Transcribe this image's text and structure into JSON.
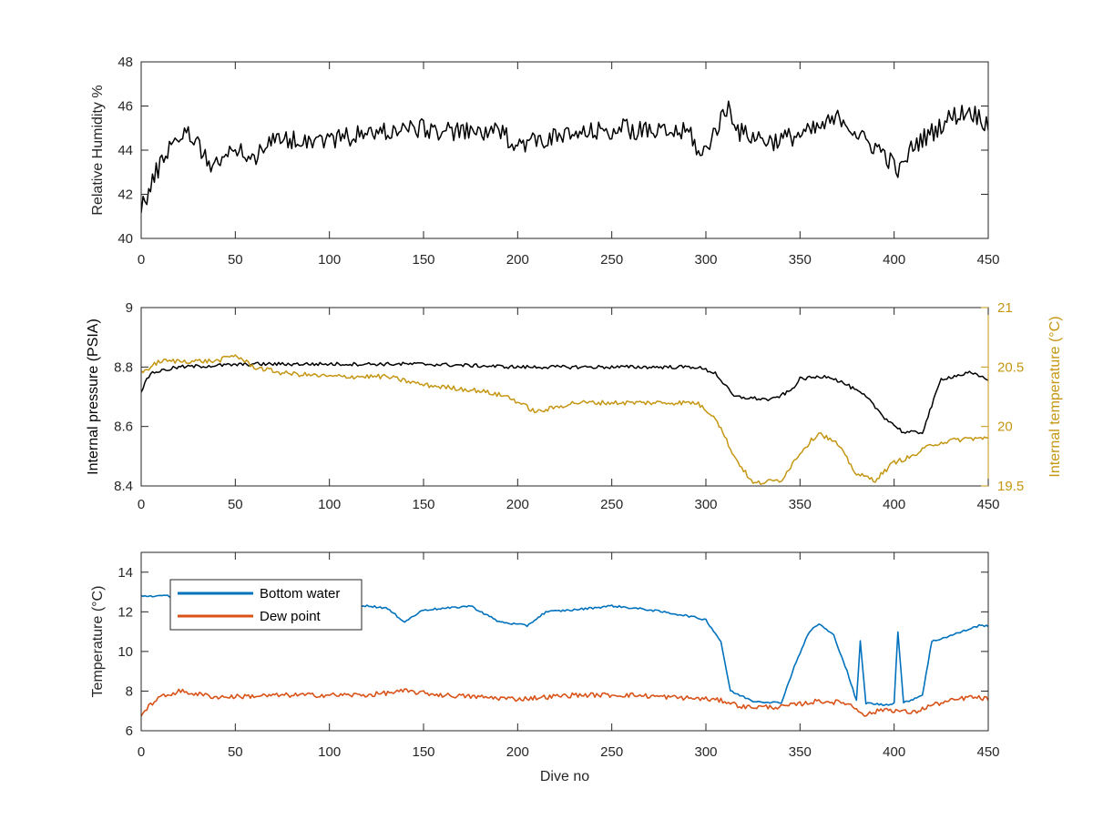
{
  "colors": {
    "black": "#000000",
    "internal_temperature": "#C49612",
    "bottom_water": "#0072BD",
    "dew_point": "#D95319",
    "axes": "#262626"
  },
  "chart_data": [
    {
      "type": "line",
      "xlabel": "",
      "ylabel": "Relative Humidity %",
      "xlim": [
        0,
        450
      ],
      "ylim": [
        40,
        48
      ],
      "xticks": [
        "0",
        "50",
        "100",
        "150",
        "200",
        "250",
        "300",
        "350",
        "400",
        "450"
      ],
      "yticks": [
        "40",
        "42",
        "44",
        "46",
        "48"
      ],
      "grid": false,
      "series": [
        {
          "color": "#000000",
          "noise": 0.45,
          "points": [
            [
              0,
              41.6
            ],
            [
              3,
              41.8
            ],
            [
              8,
              43.0
            ],
            [
              15,
              44.2
            ],
            [
              22,
              44.8
            ],
            [
              30,
              44.5
            ],
            [
              35,
              43.4
            ],
            [
              45,
              43.6
            ],
            [
              52,
              44.2
            ],
            [
              58,
              43.4
            ],
            [
              65,
              44.3
            ],
            [
              80,
              44.5
            ],
            [
              100,
              44.5
            ],
            [
              125,
              44.8
            ],
            [
              145,
              45.0
            ],
            [
              170,
              44.8
            ],
            [
              190,
              44.8
            ],
            [
              200,
              44.3
            ],
            [
              215,
              44.5
            ],
            [
              240,
              44.8
            ],
            [
              255,
              45.0
            ],
            [
              270,
              44.8
            ],
            [
              292,
              44.8
            ],
            [
              297,
              43.6
            ],
            [
              305,
              44.9
            ],
            [
              312,
              46.0
            ],
            [
              318,
              44.8
            ],
            [
              335,
              44.4
            ],
            [
              355,
              44.8
            ],
            [
              365,
              45.2
            ],
            [
              372,
              45.5
            ],
            [
              383,
              44.5
            ],
            [
              393,
              44.0
            ],
            [
              403,
              43.0
            ],
            [
              410,
              44.2
            ],
            [
              420,
              44.8
            ],
            [
              430,
              45.5
            ],
            [
              440,
              45.8
            ],
            [
              450,
              45.2
            ]
          ]
        }
      ]
    },
    {
      "type": "line",
      "xlabel": "",
      "ylabel": "Internal pressure (PSIA)",
      "y2label": "Internal temperature (°C)",
      "xlim": [
        0,
        450
      ],
      "ylim": [
        8.4,
        9
      ],
      "y2lim": [
        19.5,
        21
      ],
      "xticks": [
        "0",
        "50",
        "100",
        "150",
        "200",
        "250",
        "300",
        "350",
        "400",
        "450"
      ],
      "yticks": [
        "8.4",
        "8.6",
        "8.8",
        "9"
      ],
      "y2ticks": [
        "19.5",
        "20",
        "20.5",
        "21"
      ],
      "grid": false,
      "series": [
        {
          "axis": "left",
          "color": "#000000",
          "noise": 0.006,
          "points": [
            [
              0,
              8.72
            ],
            [
              5,
              8.78
            ],
            [
              20,
              8.8
            ],
            [
              60,
              8.81
            ],
            [
              150,
              8.81
            ],
            [
              200,
              8.8
            ],
            [
              250,
              8.8
            ],
            [
              295,
              8.8
            ],
            [
              305,
              8.78
            ],
            [
              315,
              8.7
            ],
            [
              335,
              8.69
            ],
            [
              345,
              8.72
            ],
            [
              350,
              8.76
            ],
            [
              365,
              8.77
            ],
            [
              375,
              8.74
            ],
            [
              385,
              8.7
            ],
            [
              395,
              8.63
            ],
            [
              405,
              8.58
            ],
            [
              415,
              8.58
            ],
            [
              425,
              8.76
            ],
            [
              440,
              8.78
            ],
            [
              450,
              8.76
            ]
          ]
        },
        {
          "axis": "right",
          "color": "#C49612",
          "noise": 0.02,
          "points": [
            [
              0,
              20.45
            ],
            [
              10,
              20.55
            ],
            [
              20,
              20.55
            ],
            [
              40,
              20.55
            ],
            [
              50,
              20.6
            ],
            [
              60,
              20.5
            ],
            [
              75,
              20.45
            ],
            [
              100,
              20.42
            ],
            [
              130,
              20.42
            ],
            [
              150,
              20.35
            ],
            [
              180,
              20.3
            ],
            [
              195,
              20.25
            ],
            [
              210,
              20.12
            ],
            [
              230,
              20.2
            ],
            [
              260,
              20.2
            ],
            [
              295,
              20.2
            ],
            [
              305,
              20.08
            ],
            [
              315,
              19.75
            ],
            [
              325,
              19.52
            ],
            [
              340,
              19.55
            ],
            [
              350,
              19.78
            ],
            [
              360,
              19.95
            ],
            [
              370,
              19.85
            ],
            [
              380,
              19.6
            ],
            [
              390,
              19.55
            ],
            [
              400,
              19.7
            ],
            [
              410,
              19.75
            ],
            [
              420,
              19.85
            ],
            [
              430,
              19.88
            ],
            [
              440,
              19.9
            ],
            [
              450,
              19.9
            ]
          ]
        }
      ]
    },
    {
      "type": "line",
      "xlabel": "Dive no",
      "ylabel": "Temperature (°C)",
      "xlim": [
        0,
        450
      ],
      "ylim": [
        6,
        15
      ],
      "xticks": [
        "0",
        "50",
        "100",
        "150",
        "200",
        "250",
        "300",
        "350",
        "400",
        "450"
      ],
      "yticks": [
        "6",
        "8",
        "10",
        "12",
        "14"
      ],
      "grid": false,
      "legend": "top-left",
      "series": [
        {
          "name": "Bottom water",
          "color": "#0072BD",
          "noise": 0.05,
          "points": [
            [
              0,
              12.8
            ],
            [
              15,
              12.8
            ],
            [
              25,
              12.6
            ],
            [
              40,
              12.5
            ],
            [
              60,
              12.4
            ],
            [
              80,
              12.4
            ],
            [
              110,
              12.4
            ],
            [
              130,
              12.2
            ],
            [
              140,
              11.5
            ],
            [
              150,
              12.1
            ],
            [
              165,
              12.2
            ],
            [
              175,
              12.3
            ],
            [
              190,
              11.5
            ],
            [
              205,
              11.3
            ],
            [
              215,
              12.0
            ],
            [
              230,
              12.1
            ],
            [
              250,
              12.3
            ],
            [
              270,
              12.1
            ],
            [
              290,
              11.8
            ],
            [
              300,
              11.6
            ],
            [
              308,
              10.5
            ],
            [
              313,
              8.0
            ],
            [
              325,
              7.5
            ],
            [
              340,
              7.4
            ],
            [
              348,
              9.5
            ],
            [
              355,
              11.0
            ],
            [
              360,
              11.4
            ],
            [
              368,
              10.8
            ],
            [
              375,
              9.0
            ],
            [
              380,
              7.5
            ],
            [
              382,
              10.5
            ],
            [
              385,
              7.4
            ],
            [
              395,
              7.3
            ],
            [
              400,
              7.4
            ],
            [
              402,
              11.0
            ],
            [
              405,
              7.4
            ],
            [
              415,
              7.8
            ],
            [
              420,
              10.5
            ],
            [
              430,
              10.8
            ],
            [
              445,
              11.3
            ],
            [
              450,
              11.3
            ]
          ]
        },
        {
          "name": "Dew point",
          "color": "#D95319",
          "noise": 0.12,
          "points": [
            [
              0,
              6.8
            ],
            [
              8,
              7.6
            ],
            [
              20,
              8.0
            ],
            [
              40,
              7.7
            ],
            [
              80,
              7.8
            ],
            [
              120,
              7.8
            ],
            [
              140,
              8.0
            ],
            [
              160,
              7.8
            ],
            [
              200,
              7.6
            ],
            [
              230,
              7.8
            ],
            [
              260,
              7.8
            ],
            [
              300,
              7.6
            ],
            [
              310,
              7.5
            ],
            [
              320,
              7.2
            ],
            [
              340,
              7.2
            ],
            [
              360,
              7.5
            ],
            [
              375,
              7.4
            ],
            [
              385,
              6.8
            ],
            [
              395,
              7.1
            ],
            [
              410,
              6.9
            ],
            [
              420,
              7.3
            ],
            [
              440,
              7.7
            ],
            [
              450,
              7.6
            ]
          ]
        }
      ]
    }
  ]
}
